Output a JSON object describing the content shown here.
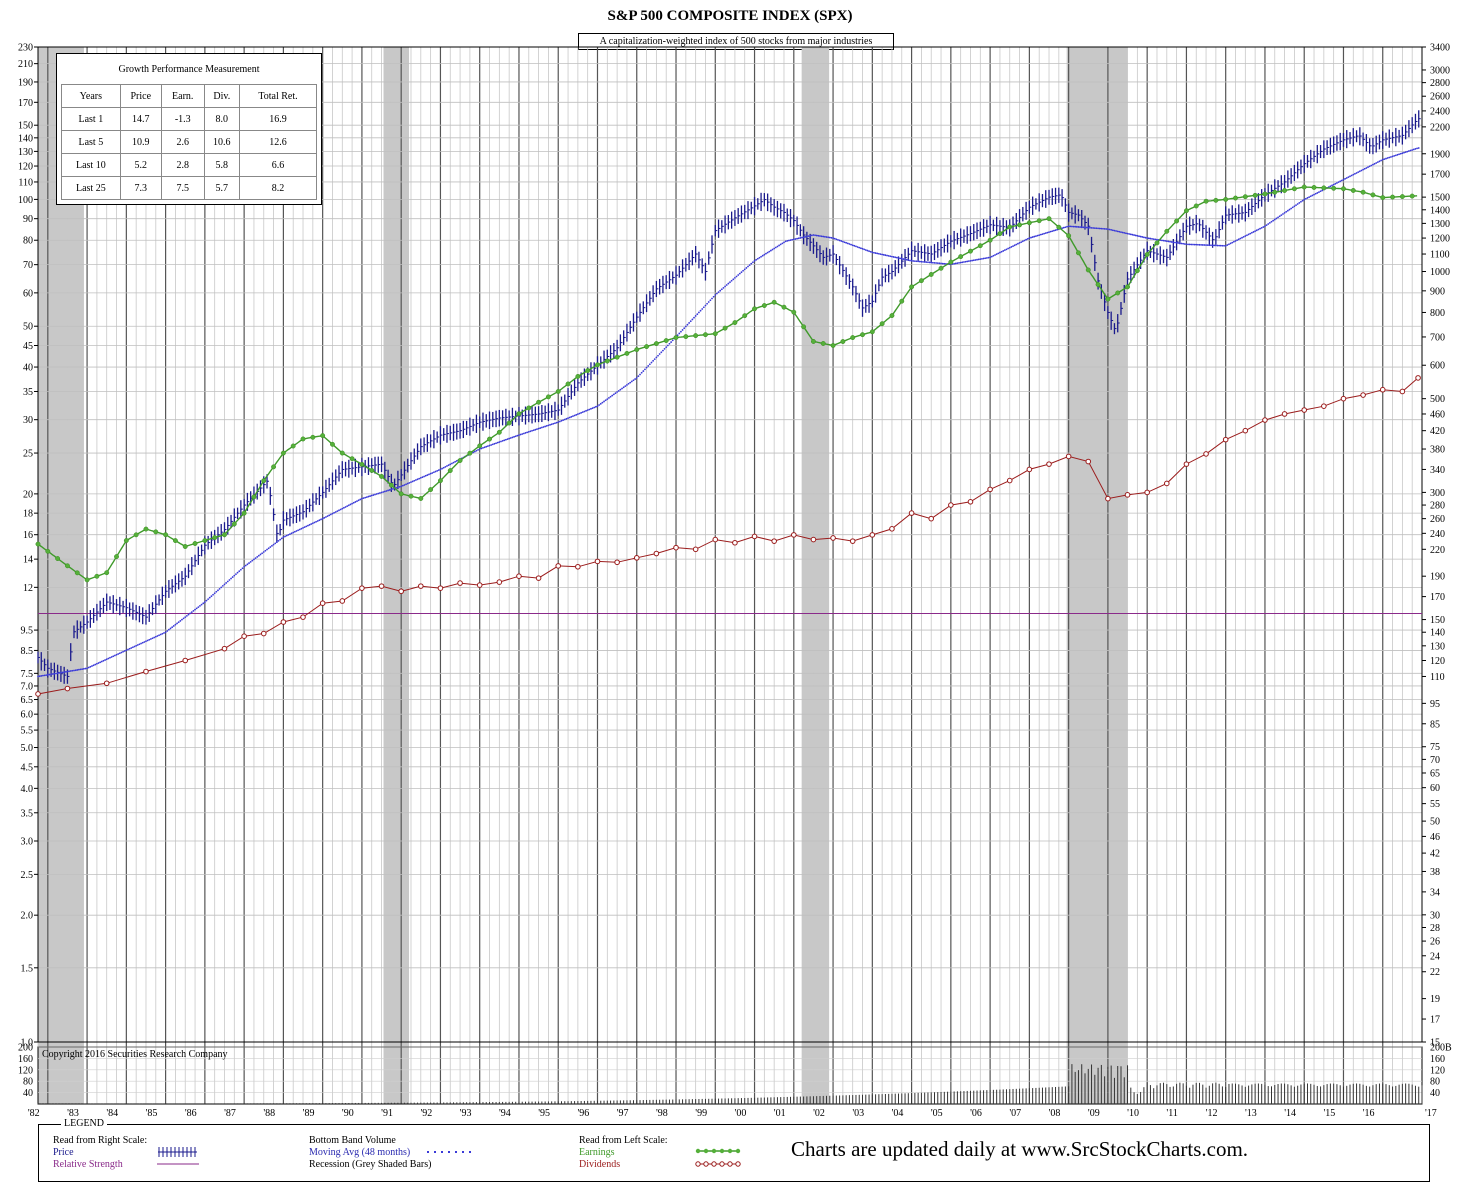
{
  "chart_data": {
    "type": "line",
    "title": "S&P 500 COMPOSITE INDEX (SPX)",
    "subtitle": "A capitalization-weighted index of 500 stocks from major industries",
    "x_range": [
      1981.75,
      2017.0
    ],
    "x_tick_labels": [
      "'82",
      "'83",
      "'84",
      "'85",
      "'86",
      "'87",
      "'88",
      "'89",
      "'90",
      "'91",
      "'92",
      "'93",
      "'94",
      "'95",
      "'96",
      "'97",
      "'98",
      "'99",
      "'00",
      "'01",
      "'02",
      "'03",
      "'04",
      "'05",
      "'06",
      "'07",
      "'08",
      "'09",
      "'10",
      "'11",
      "'12",
      "'13",
      "'14",
      "'15",
      "'16",
      "'17"
    ],
    "left_scale": {
      "type": "log",
      "range": [
        1.0,
        230
      ],
      "tick_labels": [
        "1.0",
        "1.5",
        "2.0",
        "2.5",
        "3.0",
        "3.5",
        "4.0",
        "4.5",
        "5.0",
        "5.5",
        "6.0",
        "6.5",
        "7.0",
        "7.5",
        "8.5",
        "9.5",
        "12",
        "14",
        "16",
        "18",
        "20",
        "25",
        "30",
        "35",
        "40",
        "45",
        "50",
        "60",
        "70",
        "80",
        "90",
        "100",
        "110",
        "120",
        "130",
        "140",
        "150",
        "170",
        "190",
        "210",
        "230"
      ]
    },
    "right_scale": {
      "type": "log",
      "range": [
        15,
        3400
      ],
      "tick_labels": [
        "15",
        "17",
        "19",
        "22",
        "24",
        "26",
        "28",
        "30",
        "34",
        "38",
        "42",
        "46",
        "50",
        "55",
        "60",
        "65",
        "70",
        "75",
        "85",
        "95",
        "110",
        "120",
        "130",
        "140",
        "150",
        "170",
        "190",
        "220",
        "240",
        "260",
        "280",
        "300",
        "340",
        "380",
        "420",
        "460",
        "500",
        "600",
        "700",
        "800",
        "900",
        "1000",
        "1100",
        "1200",
        "1300",
        "1400",
        "1500",
        "1700",
        "1900",
        "2200",
        "2400",
        "2600",
        "2800",
        "3000",
        "3400"
      ]
    },
    "volume_scale": {
      "range": [
        0,
        200
      ],
      "tick_labels": [
        "40",
        "80",
        "120",
        "160",
        "200"
      ],
      "top_label": "200B"
    },
    "recessions": [
      [
        1981.75,
        1982.92
      ],
      [
        1990.55,
        1991.2
      ],
      [
        2001.2,
        2001.9
      ],
      [
        2007.95,
        2009.5
      ]
    ],
    "relative_strength_level": 10.4,
    "price": {
      "name": "Price",
      "x": [
        1981.75,
        1982.0,
        1982.5,
        1982.65,
        1983.0,
        1983.5,
        1984.0,
        1984.5,
        1985.0,
        1985.5,
        1986.0,
        1986.5,
        1987.0,
        1987.6,
        1987.85,
        1988.0,
        1988.5,
        1989.0,
        1989.5,
        1990.0,
        1990.5,
        1990.8,
        1991.0,
        1991.5,
        1992.0,
        1992.5,
        1993.0,
        1993.5,
        1994.0,
        1994.5,
        1995.0,
        1995.5,
        1996.0,
        1996.5,
        1997.0,
        1997.5,
        1998.0,
        1998.5,
        1998.75,
        1999.0,
        1999.5,
        2000.0,
        2000.25,
        2000.5,
        2000.75,
        2001.0,
        2001.25,
        2001.5,
        2001.75,
        2002.0,
        2002.5,
        2002.75,
        2003.0,
        2003.25,
        2003.5,
        2004.0,
        2004.5,
        2005.0,
        2005.5,
        2006.0,
        2006.5,
        2007.0,
        2007.5,
        2007.8,
        2008.0,
        2008.25,
        2008.5,
        2008.75,
        2009.0,
        2009.2,
        2009.5,
        2010.0,
        2010.5,
        2011.0,
        2011.3,
        2011.7,
        2012.0,
        2012.5,
        2013.0,
        2013.5,
        2014.0,
        2014.5,
        2015.0,
        2015.4,
        2015.7,
        2016.0,
        2016.5,
        2016.9
      ],
      "y": [
        122,
        115,
        110,
        140,
        148,
        165,
        160,
        152,
        175,
        190,
        225,
        245,
        280,
        320,
        235,
        258,
        270,
        300,
        340,
        345,
        350,
        310,
        330,
        385,
        410,
        420,
        440,
        450,
        455,
        460,
        470,
        545,
        600,
        660,
        780,
        910,
        980,
        1100,
        1000,
        1250,
        1340,
        1430,
        1480,
        1420,
        1380,
        1320,
        1220,
        1150,
        1080,
        1100,
        920,
        820,
        850,
        970,
        1000,
        1120,
        1100,
        1180,
        1230,
        1290,
        1270,
        1420,
        1500,
        1520,
        1380,
        1360,
        1280,
        950,
        800,
        720,
        960,
        1120,
        1080,
        1280,
        1300,
        1180,
        1360,
        1380,
        1520,
        1630,
        1800,
        1950,
        2050,
        2100,
        1970,
        2050,
        2100,
        2300
      ]
    },
    "moving_avg": {
      "name": "Moving Avg (48 months)",
      "x": [
        1981.75,
        1983.0,
        1985.0,
        1986.0,
        1987.0,
        1988.0,
        1989.0,
        1990.0,
        1991.0,
        1992.0,
        1993.0,
        1994.0,
        1995.0,
        1996.0,
        1997.0,
        1998.0,
        1999.0,
        2000.0,
        2000.8,
        2001.5,
        2002.0,
        2003.0,
        2004.0,
        2005.0,
        2006.0,
        2007.0,
        2008.0,
        2009.0,
        2010.0,
        2011.0,
        2012.0,
        2013.0,
        2014.0,
        2015.0,
        2016.0,
        2016.9
      ],
      "y": [
        110,
        115,
        140,
        165,
        200,
        235,
        260,
        290,
        310,
        340,
        380,
        410,
        440,
        480,
        560,
        700,
        880,
        1060,
        1180,
        1220,
        1200,
        1110,
        1060,
        1040,
        1080,
        1200,
        1280,
        1260,
        1200,
        1160,
        1150,
        1280,
        1480,
        1650,
        1840,
        1960
      ]
    },
    "earnings": {
      "name": "Earnings",
      "x": [
        1981.75,
        1982.5,
        1983.0,
        1983.5,
        1984.0,
        1984.5,
        1985.0,
        1985.5,
        1986.0,
        1986.5,
        1987.0,
        1987.5,
        1988.0,
        1988.5,
        1989.0,
        1989.5,
        1990.0,
        1990.5,
        1991.0,
        1991.5,
        1992.0,
        1992.5,
        1993.0,
        1993.5,
        1994.0,
        1994.5,
        1995.0,
        1995.5,
        1996.0,
        1997.0,
        1998.0,
        1998.5,
        1999.0,
        1999.5,
        2000.0,
        2000.5,
        2001.0,
        2001.5,
        2002.0,
        2002.5,
        2003.0,
        2003.5,
        2004.0,
        2005.0,
        2006.0,
        2006.5,
        2007.0,
        2007.5,
        2008.0,
        2008.5,
        2009.0,
        2009.5,
        2010.0,
        2010.5,
        2011.0,
        2011.5,
        2012.0,
        2013.0,
        2014.0,
        2015.0,
        2015.5,
        2016.0,
        2016.9
      ],
      "y": [
        15.2,
        13.5,
        12.5,
        13.0,
        15.5,
        16.5,
        16.0,
        15.0,
        15.5,
        16.0,
        18.0,
        21.5,
        25.0,
        27.0,
        27.5,
        25.0,
        23.5,
        22.0,
        20.0,
        19.5,
        21.5,
        24.0,
        26.0,
        28.0,
        31.0,
        33.0,
        35.0,
        38.0,
        40.5,
        44.0,
        47.0,
        47.5,
        48.0,
        51.0,
        55.0,
        57.0,
        54.0,
        46.0,
        45.0,
        47.0,
        48.5,
        53.0,
        62.0,
        71.0,
        80.0,
        86.0,
        88.0,
        90.0,
        82.0,
        68.0,
        58.0,
        62.0,
        74.0,
        84.0,
        94.0,
        99.0,
        100.0,
        103.0,
        107.0,
        106.0,
        104.0,
        101.0,
        102.0
      ]
    },
    "dividends": {
      "name": "Dividends",
      "x": [
        1981.75,
        1982.5,
        1983.5,
        1984.5,
        1985.5,
        1986.5,
        1987.0,
        1987.5,
        1988.0,
        1988.5,
        1989.0,
        1989.5,
        1990.0,
        1990.5,
        1991.0,
        1991.5,
        1992.0,
        1992.5,
        1993.0,
        1993.5,
        1994.0,
        1994.5,
        1995.0,
        1995.5,
        1996.0,
        1996.5,
        1997.0,
        1997.5,
        1998.0,
        1998.5,
        1999.0,
        1999.5,
        2000.0,
        2000.5,
        2001.0,
        2001.5,
        2002.0,
        2002.5,
        2003.0,
        2003.5,
        2004.0,
        2004.5,
        2005.0,
        2005.5,
        2006.0,
        2006.5,
        2007.0,
        2007.5,
        2008.0,
        2008.5,
        2009.0,
        2009.5,
        2010.0,
        2010.5,
        2011.0,
        2011.5,
        2012.0,
        2012.5,
        2013.0,
        2013.5,
        2014.0,
        2014.5,
        2015.0,
        2015.5,
        2016.0,
        2016.5,
        2016.9
      ],
      "y": [
        100,
        103,
        106,
        113,
        120,
        128,
        137,
        139,
        148,
        152,
        164,
        166,
        178,
        180,
        175,
        180,
        178,
        183,
        181,
        184,
        190,
        188,
        201,
        200,
        206,
        205,
        210,
        215,
        222,
        220,
        232,
        228,
        236,
        230,
        238,
        232,
        234,
        230,
        238,
        246,
        268,
        260,
        280,
        285,
        305,
        320,
        340,
        350,
        365,
        355,
        290,
        296,
        300,
        315,
        350,
        370,
        400,
        420,
        445,
        460,
        470,
        480,
        500,
        510,
        525,
        520,
        560
      ]
    },
    "volume_level": 12
  },
  "performance": {
    "title": "Growth Performance Measurement",
    "headers": [
      "Years",
      "Price",
      "Earn.",
      "Div.",
      "Total Ret."
    ],
    "rows": [
      [
        "Last 1",
        "14.7",
        "-1.3",
        "8.0",
        "16.9"
      ],
      [
        "Last 5",
        "10.9",
        "2.6",
        "10.6",
        "12.6"
      ],
      [
        "Last 10",
        "5.2",
        "2.8",
        "5.8",
        "6.6"
      ],
      [
        "Last 25",
        "7.3",
        "7.5",
        "5.7",
        "8.2"
      ]
    ]
  },
  "copyright": "Copyright 2016 Securities Research Company",
  "legend": {
    "title": "LEGEND",
    "right_scale_label": "Read from Right Scale:",
    "price_label": "Price",
    "rs_label": "Relative Strength",
    "volume_label": "Bottom Band Volume",
    "ma_label": "Moving Avg (48 months)",
    "recession_label": "Recession (Grey Shaded Bars)",
    "left_scale_label": "Read from Left Scale:",
    "earnings_label": "Earnings",
    "dividends_label": "Dividends",
    "slogan": "Charts are updated daily at www.SrcStockCharts.com."
  },
  "colors": {
    "price": "#1a1a8c",
    "moving_avg": "#3a3ad8",
    "earnings": "#3f9a2a",
    "earnings_dot": "#55b03a",
    "dividends": "#9b1c1c",
    "rs": "#8a2a8a",
    "recession": "#c8c8c8"
  }
}
